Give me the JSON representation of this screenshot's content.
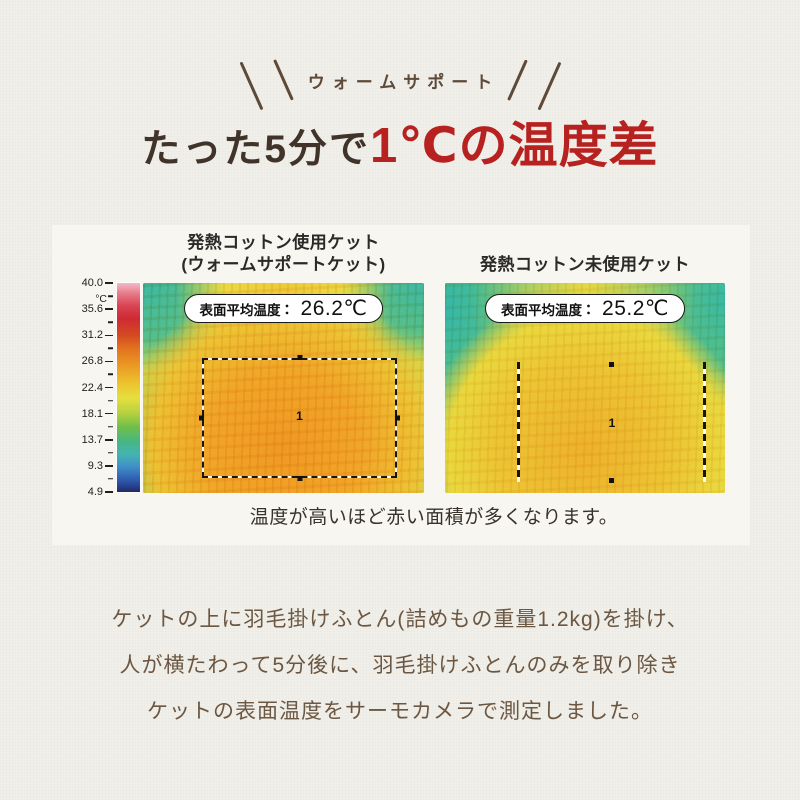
{
  "badge": {
    "label": "ウォームサポート"
  },
  "title": {
    "prefix": "たった5分で",
    "highlight": "1℃の温度差"
  },
  "comparison": {
    "left": {
      "heading_line1": "発熱コットン使用ケット",
      "heading_line2": "(ウォームサポートケット)",
      "pill_label": "表面平均温度",
      "pill_separator": "：",
      "pill_value": "26.2℃",
      "roi_label": "1"
    },
    "right": {
      "heading_line1": "発熱コットン未使用ケット",
      "pill_label": "表面平均温度",
      "pill_separator": "：",
      "pill_value": "25.2℃",
      "roi_label": "1"
    },
    "scale": {
      "unit": "°C",
      "labels": [
        "40.0",
        "35.6",
        "31.2",
        "26.8",
        "22.4",
        "18.1",
        "13.7",
        "9.3",
        "4.9"
      ]
    },
    "caption": "温度が高いほど赤い面積が多くなります。"
  },
  "description": {
    "lines": [
      "ケットの上に羽毛掛けふとん(詰めもの重量1.2kg)を掛け、",
      "人が横たわって5分後に、羽毛掛けふとんのみを取り除き",
      "ケットの表面温度をサーモカメラで測定しました。"
    ]
  },
  "colors": {
    "page_bg": "#f1efe9",
    "panel_bg": "#f8f6f1",
    "accent_red": "#b7211f",
    "text_dark": "#40332a",
    "text_brown": "#5d4a39",
    "desc_brown": "#6b5742",
    "thermal_teal": "#3cb9a6",
    "thermal_orange": "#ef9a22",
    "thermal_yellow": "#e7d73f"
  }
}
